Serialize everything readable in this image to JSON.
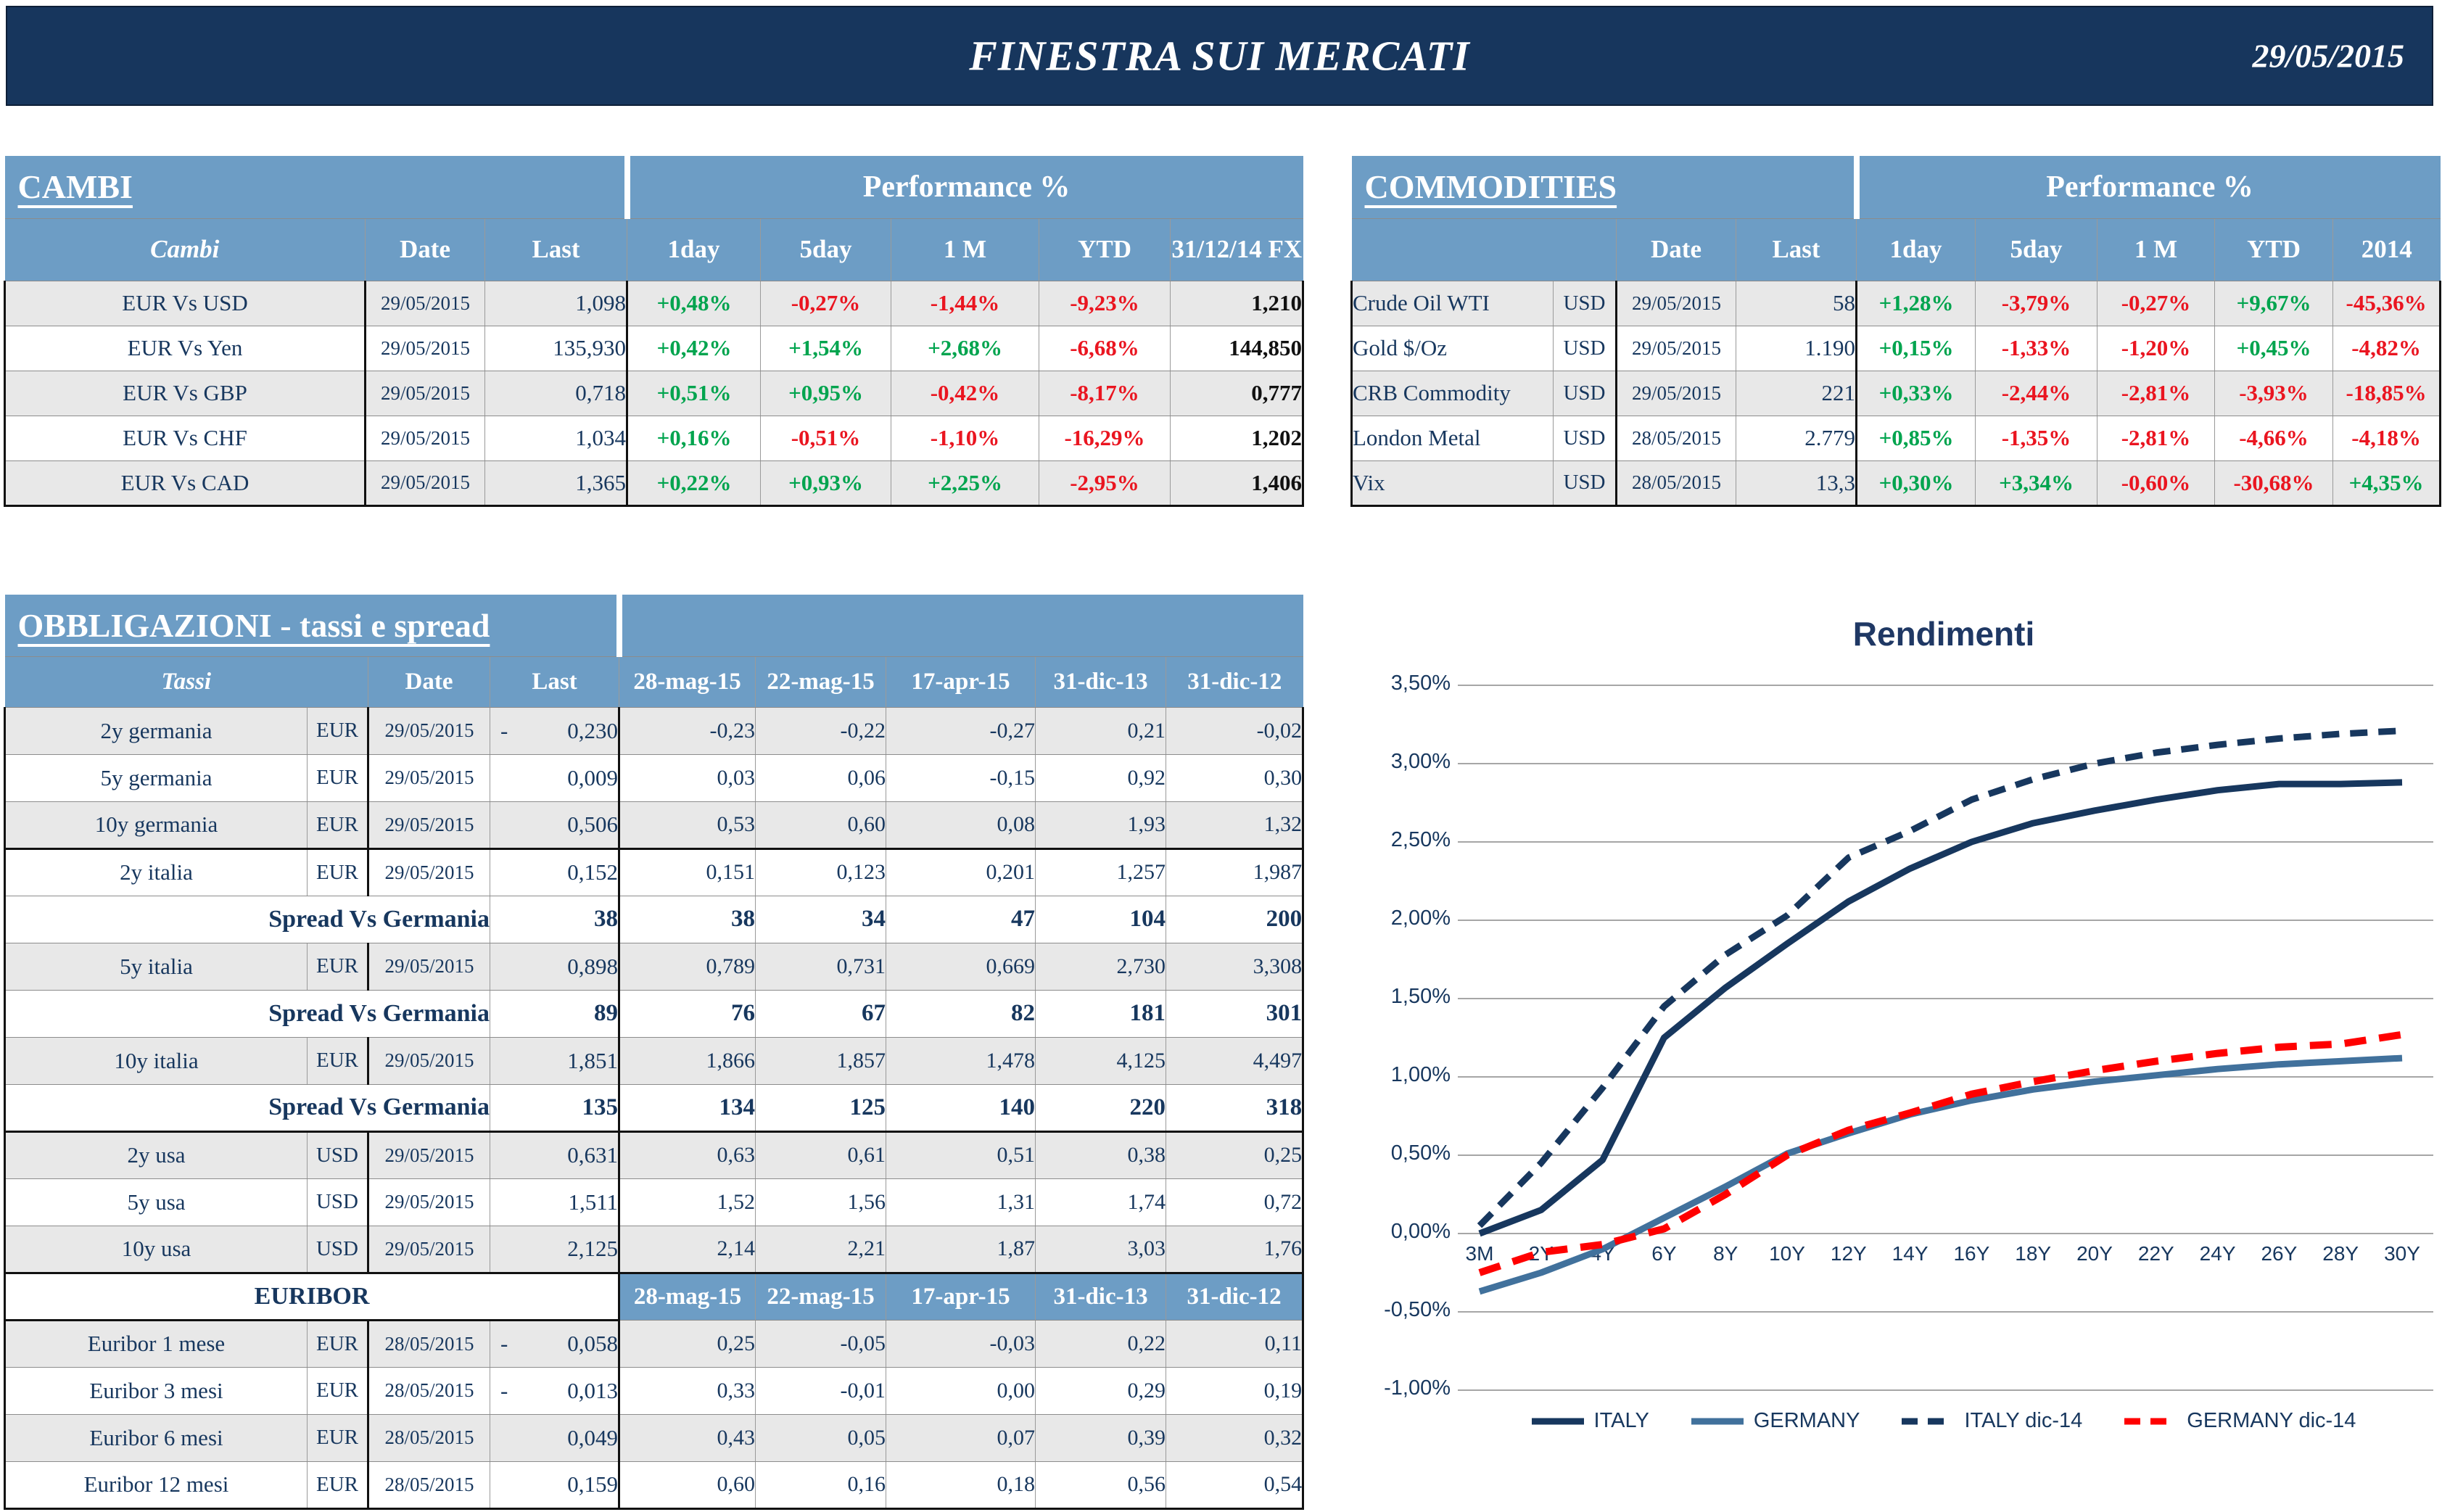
{
  "header": {
    "title": "FINESTRA SUI MERCATI",
    "date": "29/05/2015"
  },
  "cambi": {
    "title": "CAMBI",
    "perf_header": "Performance  %",
    "col_headers": [
      "Cambi",
      "Date",
      "Last",
      "1day",
      "5day",
      "1 M",
      "YTD",
      "31/12/14 FX"
    ],
    "rows": [
      {
        "name": "EUR Vs USD",
        "date": "29/05/2015",
        "last": "1,098",
        "perf": [
          "+0,48%",
          "-0,27%",
          "-1,44%",
          "-9,23%"
        ],
        "fx": "1,210"
      },
      {
        "name": "EUR Vs Yen",
        "date": "29/05/2015",
        "last": "135,930",
        "perf": [
          "+0,42%",
          "+1,54%",
          "+2,68%",
          "-6,68%"
        ],
        "fx": "144,850"
      },
      {
        "name": "EUR Vs GBP",
        "date": "29/05/2015",
        "last": "0,718",
        "perf": [
          "+0,51%",
          "+0,95%",
          "-0,42%",
          "-8,17%"
        ],
        "fx": "0,777"
      },
      {
        "name": "EUR Vs CHF",
        "date": "29/05/2015",
        "last": "1,034",
        "perf": [
          "+0,16%",
          "-0,51%",
          "-1,10%",
          "-16,29%"
        ],
        "fx": "1,202"
      },
      {
        "name": "EUR Vs CAD",
        "date": "29/05/2015",
        "last": "1,365",
        "perf": [
          "+0,22%",
          "+0,93%",
          "+2,25%",
          "-2,95%"
        ],
        "fx": "1,406"
      }
    ]
  },
  "commodities": {
    "title": "COMMODITIES",
    "perf_header": "Performance  %",
    "col_headers": [
      "",
      "Date",
      "Last",
      "1day",
      "5day",
      "1 M",
      "YTD",
      "2014"
    ],
    "rows": [
      {
        "name": "Crude Oil WTI",
        "currency": "USD",
        "date": "29/05/2015",
        "last": "58",
        "perf": [
          "+1,28%",
          "-3,79%",
          "-0,27%",
          "+9,67%",
          "-45,36%"
        ]
      },
      {
        "name": "Gold $/Oz",
        "currency": "USD",
        "date": "29/05/2015",
        "last": "1.190",
        "perf": [
          "+0,15%",
          "-1,33%",
          "-1,20%",
          "+0,45%",
          "-4,82%"
        ]
      },
      {
        "name": "CRB Commodity",
        "currency": "USD",
        "date": "29/05/2015",
        "last": "221",
        "perf": [
          "+0,33%",
          "-2,44%",
          "-2,81%",
          "-3,93%",
          "-18,85%"
        ]
      },
      {
        "name": "London Metal",
        "currency": "USD",
        "date": "28/05/2015",
        "last": "2.779",
        "perf": [
          "+0,85%",
          "-1,35%",
          "-2,81%",
          "-4,66%",
          "-4,18%"
        ]
      },
      {
        "name": "Vix",
        "currency": "USD",
        "date": "28/05/2015",
        "last": "13,3",
        "perf": [
          "+0,30%",
          "+3,34%",
          "-0,60%",
          "-30,68%",
          "+4,35%"
        ]
      }
    ]
  },
  "obbligazioni": {
    "title": "OBBLIGAZIONI - tassi e spread",
    "col_headers": [
      "Tassi",
      "Date",
      "Last",
      "28-mag-15",
      "22-mag-15",
      "17-apr-15",
      "31-dic-13",
      "31-dic-12"
    ],
    "euribor_label": "EURIBOR",
    "euribor_headers": [
      "28-mag-15",
      "22-mag-15",
      "17-apr-15",
      "31-dic-13",
      "31-dic-12"
    ],
    "rows": [
      {
        "type": "rate",
        "name": "2y germania",
        "currency": "EUR",
        "date": "29/05/2015",
        "last_sign": "-",
        "last": "0,230",
        "vals": [
          "-0,23",
          "-0,22",
          "-0,27",
          "0,21",
          "-0,02"
        ],
        "shade": true
      },
      {
        "type": "rate",
        "name": "5y germania",
        "currency": "EUR",
        "date": "29/05/2015",
        "last_sign": "",
        "last": "0,009",
        "vals": [
          "0,03",
          "0,06",
          "-0,15",
          "0,92",
          "0,30"
        ],
        "shade": false
      },
      {
        "type": "rate",
        "name": "10y germania",
        "currency": "EUR",
        "date": "29/05/2015",
        "last_sign": "",
        "last": "0,506",
        "vals": [
          "0,53",
          "0,60",
          "0,08",
          "1,93",
          "1,32"
        ],
        "shade": true,
        "thick_bottom": true
      },
      {
        "type": "rate",
        "name": "2y italia",
        "currency": "EUR",
        "date": "29/05/2015",
        "last_sign": "",
        "last": "0,152",
        "vals": [
          "0,151",
          "0,123",
          "0,201",
          "1,257",
          "1,987"
        ],
        "shade": false
      },
      {
        "type": "spread",
        "name": "Spread Vs Germania",
        "last": "38",
        "vals": [
          "38",
          "34",
          "47",
          "104",
          "200"
        ],
        "shade": false
      },
      {
        "type": "rate",
        "name": "5y italia",
        "currency": "EUR",
        "date": "29/05/2015",
        "last_sign": "",
        "last": "0,898",
        "vals": [
          "0,789",
          "0,731",
          "0,669",
          "2,730",
          "3,308"
        ],
        "shade": true
      },
      {
        "type": "spread",
        "name": "Spread Vs Germania",
        "last": "89",
        "vals": [
          "76",
          "67",
          "82",
          "181",
          "301"
        ],
        "shade": false
      },
      {
        "type": "rate",
        "name": "10y italia",
        "currency": "EUR",
        "date": "29/05/2015",
        "last_sign": "",
        "last": "1,851",
        "vals": [
          "1,866",
          "1,857",
          "1,478",
          "4,125",
          "4,497"
        ],
        "shade": true
      },
      {
        "type": "spread",
        "name": "Spread Vs Germania",
        "last": "135",
        "vals": [
          "134",
          "125",
          "140",
          "220",
          "318"
        ],
        "shade": false,
        "thick_bottom": true
      },
      {
        "type": "rate",
        "name": "2y usa",
        "currency": "USD",
        "date": "29/05/2015",
        "last_sign": "",
        "last": "0,631",
        "vals": [
          "0,63",
          "0,61",
          "0,51",
          "0,38",
          "0,25"
        ],
        "shade": true
      },
      {
        "type": "rate",
        "name": "5y usa",
        "currency": "USD",
        "date": "29/05/2015",
        "last_sign": "",
        "last": "1,511",
        "vals": [
          "1,52",
          "1,56",
          "1,31",
          "1,74",
          "0,72"
        ],
        "shade": false
      },
      {
        "type": "rate",
        "name": "10y usa",
        "currency": "USD",
        "date": "29/05/2015",
        "last_sign": "",
        "last": "2,125",
        "vals": [
          "2,14",
          "2,21",
          "1,87",
          "3,03",
          "1,76"
        ],
        "shade": true,
        "thick_bottom": true
      },
      {
        "type": "euribor_header",
        "shade": false
      },
      {
        "type": "rate",
        "name": "Euribor 1 mese",
        "currency": "EUR",
        "date": "28/05/2015",
        "last_sign": "-",
        "last": "0,058",
        "vals": [
          "0,25",
          "-0,05",
          "-0,03",
          "0,22",
          "0,11"
        ],
        "shade": true
      },
      {
        "type": "rate",
        "name": "Euribor 3 mesi",
        "currency": "EUR",
        "date": "28/05/2015",
        "last_sign": "-",
        "last": "0,013",
        "vals": [
          "0,33",
          "-0,01",
          "0,00",
          "0,29",
          "0,19"
        ],
        "shade": false
      },
      {
        "type": "rate",
        "name": "Euribor 6 mesi",
        "currency": "EUR",
        "date": "28/05/2015",
        "last_sign": "",
        "last": "0,049",
        "vals": [
          "0,43",
          "0,05",
          "0,07",
          "0,39",
          "0,32"
        ],
        "shade": true
      },
      {
        "type": "rate",
        "name": "Euribor 12 mesi",
        "currency": "EUR",
        "date": "28/05/2015",
        "last_sign": "",
        "last": "0,159",
        "vals": [
          "0,60",
          "0,16",
          "0,18",
          "0,56",
          "0,54"
        ],
        "shade": false,
        "thick_bottom": true
      }
    ]
  },
  "chart_data": {
    "type": "line",
    "title": "Rendimenti",
    "categories": [
      "3M",
      "2Y",
      "4Y",
      "6Y",
      "8Y",
      "10Y",
      "12Y",
      "14Y",
      "16Y",
      "18Y",
      "20Y",
      "22Y",
      "24Y",
      "26Y",
      "28Y",
      "30Y"
    ],
    "y_ticks": [
      "3,50%",
      "3,00%",
      "2,50%",
      "2,00%",
      "1,50%",
      "1,00%",
      "0,50%",
      "0,00%",
      "-0,50%",
      "-1,00%"
    ],
    "ylim": [
      -1.0,
      3.5
    ],
    "grid": true,
    "legend_position": "bottom",
    "series": [
      {
        "name": "ITALY",
        "color": "#17375E",
        "dash": false,
        "values": [
          0.0,
          0.15,
          0.47,
          1.25,
          1.57,
          1.85,
          2.12,
          2.33,
          2.5,
          2.62,
          2.7,
          2.77,
          2.83,
          2.87,
          2.87,
          2.88
        ]
      },
      {
        "name": "GERMANY",
        "color": "#41719C",
        "dash": false,
        "values": [
          -0.37,
          -0.25,
          -0.1,
          0.1,
          0.3,
          0.51,
          0.64,
          0.76,
          0.85,
          0.92,
          0.97,
          1.01,
          1.05,
          1.08,
          1.1,
          1.12
        ]
      },
      {
        "name": "ITALY dic-14",
        "color": "#17375E",
        "dash": true,
        "values": [
          0.05,
          0.45,
          0.93,
          1.45,
          1.78,
          2.03,
          2.4,
          2.57,
          2.77,
          2.9,
          3.0,
          3.07,
          3.12,
          3.16,
          3.19,
          3.21
        ]
      },
      {
        "name": "GERMANY dic-14",
        "color": "#FF0000",
        "dash": true,
        "values": [
          -0.25,
          -0.12,
          -0.07,
          0.03,
          0.25,
          0.5,
          0.66,
          0.77,
          0.89,
          0.97,
          1.04,
          1.1,
          1.15,
          1.19,
          1.21,
          1.27
        ]
      }
    ]
  }
}
